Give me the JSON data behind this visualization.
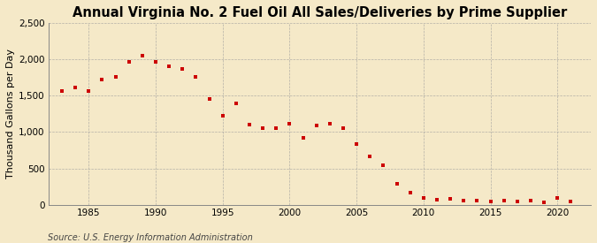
{
  "title": "Annual Virginia No. 2 Fuel Oil All Sales/Deliveries by Prime Supplier",
  "ylabel": "Thousand Gallons per Day",
  "source": "Source: U.S. Energy Information Administration",
  "background_color": "#f5e9c8",
  "plot_bg_color": "#f5e9c8",
  "marker_color": "#cc0000",
  "years": [
    1983,
    1984,
    1985,
    1986,
    1987,
    1988,
    1989,
    1990,
    1991,
    1992,
    1993,
    1994,
    1995,
    1996,
    1997,
    1998,
    1999,
    2000,
    2001,
    2002,
    2003,
    2004,
    2005,
    2006,
    2007,
    2008,
    2009,
    2010,
    2011,
    2012,
    2013,
    2014,
    2015,
    2016,
    2017,
    2018,
    2019,
    2020,
    2021
  ],
  "values": [
    1570,
    1610,
    1570,
    1720,
    1760,
    1970,
    2050,
    1960,
    1910,
    1870,
    1760,
    1460,
    1230,
    1390,
    1100,
    1060,
    1050,
    1110,
    920,
    1090,
    1120,
    1050,
    840,
    670,
    545,
    290,
    165,
    100,
    70,
    80,
    55,
    60,
    50,
    65,
    45,
    55,
    40,
    95,
    50
  ],
  "ylim": [
    0,
    2500
  ],
  "xlim": [
    1982,
    2022.5
  ],
  "yticks": [
    0,
    500,
    1000,
    1500,
    2000,
    2500
  ],
  "xticks": [
    1985,
    1990,
    1995,
    2000,
    2005,
    2010,
    2015,
    2020
  ],
  "grid_color": "#999999",
  "title_fontsize": 10.5,
  "axis_fontsize": 8,
  "tick_fontsize": 7.5,
  "source_fontsize": 7
}
